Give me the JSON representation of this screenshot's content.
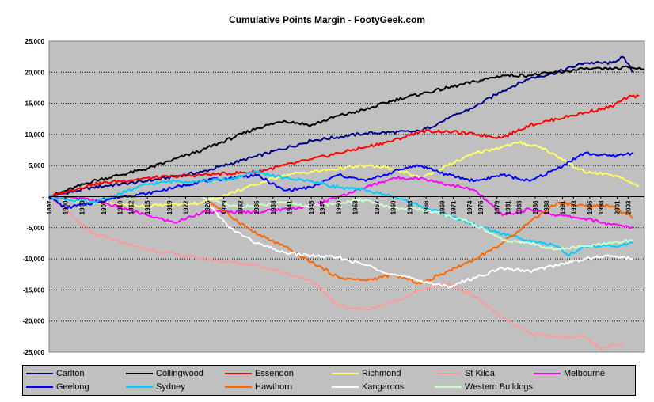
{
  "chart_data": {
    "type": "line",
    "title": "Cumulative Points Margin - FootyGeek.com",
    "xlabel": "",
    "ylabel": "",
    "ylim": [
      -25000,
      25000
    ],
    "yticks": [
      25000,
      20000,
      15000,
      10000,
      5000,
      0,
      -5000,
      -10000,
      -15000,
      -20000,
      -25000
    ],
    "ytick_labels": [
      "25,000",
      "20,000",
      "15,000",
      "10,000",
      "5,000",
      "-",
      "-5,000",
      "-10,000",
      "-15,000",
      "-20,000",
      "-25,000"
    ],
    "xlim": [
      1897,
      2006
    ],
    "xticks": [
      1897,
      1900,
      1903,
      1907,
      1910,
      1912,
      1915,
      1919,
      1922,
      1926,
      1929,
      1932,
      1935,
      1938,
      1941,
      1945,
      1947,
      1950,
      1953,
      1957,
      1960,
      1963,
      1966,
      1969,
      1971,
      1974,
      1976,
      1979,
      1981,
      1983,
      1986,
      1988,
      1991,
      1993,
      1996,
      1998,
      2001,
      2003
    ],
    "grid": "horizontal dotted",
    "legend_position": "bottom",
    "series": [
      {
        "name": "Carlton",
        "color": "#000080",
        "x": [
          1897,
          1905,
          1915,
          1925,
          1935,
          1945,
          1955,
          1965,
          1970,
          1975,
          1980,
          1985,
          1990,
          1995,
          2000,
          2002,
          2004
        ],
        "y": [
          0,
          1500,
          2500,
          4000,
          6500,
          9000,
          10200,
          10500,
          12500,
          14500,
          17000,
          19000,
          20000,
          21500,
          21500,
          22500,
          20000
        ]
      },
      {
        "name": "Collingwood",
        "color": "#000000",
        "x": [
          1897,
          1905,
          1915,
          1925,
          1935,
          1940,
          1945,
          1950,
          1955,
          1960,
          1965,
          1970,
          1975,
          1980,
          1985,
          1990,
          1995,
          2000,
          2003,
          2006
        ],
        "y": [
          0,
          2500,
          4500,
          7500,
          11000,
          12200,
          11500,
          13000,
          14000,
          15500,
          16500,
          17500,
          18500,
          19500,
          19500,
          20000,
          20500,
          20500,
          20800,
          20500
        ]
      },
      {
        "name": "Essendon",
        "color": "#ff0000",
        "x": [
          1897,
          1905,
          1915,
          1925,
          1935,
          1945,
          1950,
          1955,
          1960,
          1965,
          1970,
          1975,
          1980,
          1985,
          1990,
          1995,
          2000,
          2003,
          2005
        ],
        "y": [
          0,
          2000,
          3000,
          3500,
          4000,
          6000,
          7000,
          8000,
          9000,
          10500,
          10500,
          10000,
          9500,
          11500,
          12500,
          13500,
          14500,
          16000,
          16200
        ]
      },
      {
        "name": "Richmond",
        "color": "#ffff66",
        "x": [
          1897,
          1905,
          1915,
          1925,
          1935,
          1940,
          1945,
          1950,
          1955,
          1960,
          1965,
          1970,
          1975,
          1980,
          1983,
          1987,
          1990,
          1995,
          2000,
          2003,
          2005
        ],
        "y": [
          0,
          -1000,
          -1500,
          -1000,
          2000,
          3500,
          4000,
          4500,
          5000,
          4500,
          3000,
          5000,
          7000,
          8000,
          8700,
          8000,
          6500,
          4000,
          3500,
          2500,
          1800
        ]
      },
      {
        "name": "St Kilda",
        "color": "#ff9999",
        "x": [
          1897,
          1905,
          1915,
          1925,
          1935,
          1945,
          1950,
          1955,
          1960,
          1965,
          1970,
          1975,
          1980,
          1985,
          1990,
          1995,
          1998,
          2002
        ],
        "y": [
          0,
          -6000,
          -8500,
          -10000,
          -11000,
          -13500,
          -17500,
          -18200,
          -17000,
          -15000,
          -14000,
          -16000,
          -19500,
          -22000,
          -22500,
          -22500,
          -24500,
          -23500
        ]
      },
      {
        "name": "Melbourne",
        "color": "#ff00ff",
        "x": [
          1897,
          1905,
          1915,
          1920,
          1925,
          1935,
          1945,
          1950,
          1955,
          1960,
          1965,
          1970,
          1975,
          1980,
          1985,
          1990,
          1995,
          2000,
          2004
        ],
        "y": [
          0,
          -500,
          -3000,
          -4200,
          -2500,
          -2500,
          -1500,
          0,
          1500,
          3000,
          3000,
          2000,
          1000,
          -3000,
          -2000,
          -3000,
          -3500,
          -4500,
          -5000
        ]
      },
      {
        "name": "Geelong",
        "color": "#0000ff",
        "x": [
          1897,
          1900,
          1905,
          1910,
          1915,
          1920,
          1925,
          1930,
          1935,
          1940,
          1945,
          1950,
          1955,
          1960,
          1963,
          1965,
          1970,
          1975,
          1980,
          1985,
          1990,
          1995,
          2000,
          2004
        ],
        "y": [
          0,
          -1800,
          -1000,
          0,
          500,
          1500,
          2500,
          3000,
          3500,
          1000,
          1500,
          3500,
          2500,
          4000,
          4800,
          5000,
          3500,
          2500,
          3500,
          2500,
          4500,
          7000,
          6500,
          7000
        ]
      },
      {
        "name": "Sydney",
        "color": "#00ccff",
        "x": [
          1897,
          1905,
          1910,
          1915,
          1920,
          1925,
          1930,
          1935,
          1940,
          1945,
          1950,
          1955,
          1960,
          1965,
          1970,
          1975,
          1980,
          1985,
          1990,
          1992,
          1995,
          2000,
          2004
        ],
        "y": [
          0,
          -1000,
          500,
          2000,
          2500,
          2500,
          2800,
          4000,
          3000,
          2500,
          1500,
          1000,
          0,
          -1500,
          -3000,
          -4500,
          -6000,
          -7000,
          -8000,
          -9500,
          -8000,
          -8000,
          -7500
        ]
      },
      {
        "name": "Hawthorn",
        "color": "#ff6600",
        "x": [
          1925,
          1930,
          1935,
          1940,
          1945,
          1950,
          1955,
          1960,
          1965,
          1970,
          1975,
          1980,
          1985,
          1990,
          1995,
          2000,
          2004
        ],
        "y": [
          0,
          -3000,
          -6000,
          -8000,
          -10500,
          -13000,
          -13500,
          -12500,
          -14000,
          -12000,
          -10000,
          -7500,
          -4000,
          -1000,
          -1500,
          -1500,
          -3500
        ]
      },
      {
        "name": "Kangaroos",
        "color": "#ffffff",
        "x": [
          1925,
          1930,
          1935,
          1940,
          1945,
          1950,
          1955,
          1960,
          1965,
          1970,
          1975,
          1980,
          1985,
          1990,
          1995,
          2000,
          2004
        ],
        "y": [
          0,
          -5000,
          -7500,
          -9000,
          -9500,
          -9800,
          -11000,
          -12500,
          -13500,
          -14500,
          -13000,
          -11500,
          -12000,
          -11000,
          -10000,
          -9500,
          -10000
        ]
      },
      {
        "name": "Western Bulldogs",
        "color": "#ccffcc",
        "x": [
          1925,
          1930,
          1935,
          1940,
          1945,
          1950,
          1955,
          1960,
          1965,
          1970,
          1975,
          1980,
          1985,
          1990,
          1995,
          2000,
          2004
        ],
        "y": [
          0,
          -1500,
          -1500,
          -1000,
          -1500,
          -1000,
          -500,
          -2000,
          -2000,
          -3000,
          -4500,
          -7000,
          -7500,
          -8500,
          -8000,
          -7500,
          -7000
        ]
      }
    ]
  },
  "legend_rows": [
    [
      "Carlton",
      "Collingwood",
      "Essendon",
      "Richmond",
      "St Kilda",
      "Melbourne"
    ],
    [
      "Geelong",
      "Sydney",
      "Hawthorn",
      "Kangaroos",
      "Western Bulldogs"
    ]
  ]
}
